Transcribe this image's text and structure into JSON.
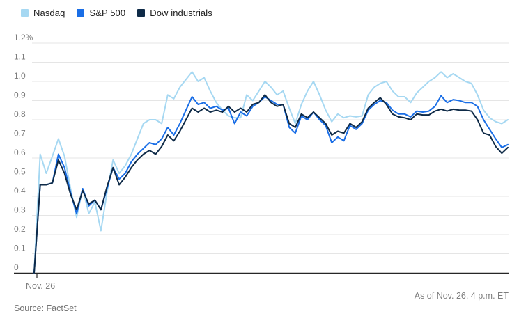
{
  "footer": {
    "source": "Source: FactSet",
    "as_of": "As of Nov. 26, 4 p.m. ET"
  },
  "chart_data": {
    "type": "line",
    "title": "",
    "xlabel": "Nov. 26",
    "ylabel": "",
    "unit": "%",
    "ylim": [
      0,
      1.2
    ],
    "grid": true,
    "legend_position": "top-left",
    "y_ticks": [
      "1.2%",
      "1.1",
      "1.0",
      "0.9",
      "0.8",
      "0.7",
      "0.6",
      "0.5",
      "0.4",
      "0.3",
      "0.2",
      "0.1",
      "0"
    ],
    "x_start_label": "Nov. 26",
    "colors": {
      "grid": "#e5e5e5",
      "axis": "#262626",
      "tick_text": "#7d7d7d"
    },
    "series": [
      {
        "name": "Nasdaq",
        "color": "#a6d8f2",
        "values": [
          0,
          0.62,
          0.52,
          0.61,
          0.7,
          0.61,
          0.44,
          0.29,
          0.44,
          0.31,
          0.37,
          0.22,
          0.42,
          0.59,
          0.52,
          0.56,
          0.62,
          0.7,
          0.78,
          0.8,
          0.8,
          0.78,
          0.93,
          0.91,
          0.97,
          1.01,
          1.05,
          1.0,
          1.02,
          0.95,
          0.89,
          0.85,
          0.82,
          0.81,
          0.81,
          0.93,
          0.9,
          0.95,
          1.0,
          0.97,
          0.93,
          0.95,
          0.86,
          0.78,
          0.88,
          0.95,
          1.0,
          0.93,
          0.85,
          0.79,
          0.83,
          0.81,
          0.82,
          0.815,
          0.82,
          0.93,
          0.97,
          0.99,
          1.0,
          0.95,
          0.92,
          0.92,
          0.89,
          0.94,
          0.97,
          1.0,
          1.02,
          1.05,
          1.02,
          1.04,
          1.02,
          1.0,
          0.99,
          0.93,
          0.85,
          0.81,
          0.79,
          0.78,
          0.8
        ]
      },
      {
        "name": "S&P 500",
        "color": "#1a6ee6",
        "values": [
          0,
          0.46,
          0.46,
          0.47,
          0.62,
          0.55,
          0.42,
          0.31,
          0.44,
          0.35,
          0.38,
          0.33,
          0.44,
          0.55,
          0.49,
          0.52,
          0.58,
          0.62,
          0.65,
          0.68,
          0.67,
          0.7,
          0.76,
          0.72,
          0.78,
          0.85,
          0.92,
          0.88,
          0.89,
          0.86,
          0.87,
          0.85,
          0.86,
          0.78,
          0.84,
          0.82,
          0.87,
          0.89,
          0.92,
          0.9,
          0.88,
          0.88,
          0.76,
          0.73,
          0.82,
          0.8,
          0.84,
          0.8,
          0.77,
          0.68,
          0.71,
          0.69,
          0.77,
          0.75,
          0.78,
          0.85,
          0.88,
          0.9,
          0.89,
          0.85,
          0.83,
          0.83,
          0.815,
          0.845,
          0.84,
          0.845,
          0.87,
          0.925,
          0.89,
          0.905,
          0.9,
          0.89,
          0.89,
          0.87,
          0.8,
          0.75,
          0.7,
          0.655,
          0.67
        ]
      },
      {
        "name": "Dow industrials",
        "color": "#0e2a47",
        "values": [
          0,
          0.46,
          0.46,
          0.47,
          0.59,
          0.52,
          0.41,
          0.33,
          0.43,
          0.36,
          0.38,
          0.33,
          0.45,
          0.55,
          0.46,
          0.5,
          0.55,
          0.59,
          0.62,
          0.64,
          0.62,
          0.66,
          0.72,
          0.69,
          0.74,
          0.8,
          0.86,
          0.84,
          0.86,
          0.84,
          0.85,
          0.84,
          0.87,
          0.84,
          0.86,
          0.84,
          0.88,
          0.89,
          0.93,
          0.89,
          0.87,
          0.88,
          0.78,
          0.76,
          0.83,
          0.81,
          0.84,
          0.81,
          0.78,
          0.72,
          0.74,
          0.73,
          0.78,
          0.76,
          0.79,
          0.86,
          0.89,
          0.915,
          0.88,
          0.83,
          0.815,
          0.81,
          0.8,
          0.83,
          0.825,
          0.825,
          0.845,
          0.855,
          0.845,
          0.855,
          0.85,
          0.85,
          0.845,
          0.8,
          0.73,
          0.72,
          0.66,
          0.625,
          0.655
        ]
      }
    ]
  }
}
